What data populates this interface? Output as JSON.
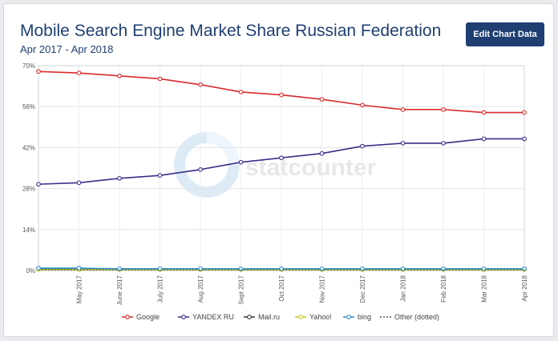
{
  "header": {
    "title": "Mobile Search Engine Market Share Russian Federation",
    "subtitle": "Apr 2017 - Apr 2018",
    "edit_button": "Edit Chart Data"
  },
  "watermark": "statcounter",
  "chart_data": {
    "type": "line",
    "categories": [
      "Apr 2017",
      "May 2017",
      "June 2017",
      "July 2017",
      "Aug 2017",
      "Sept 2017",
      "Oct 2017",
      "Nov 2017",
      "Dec 2017",
      "Jan 2018",
      "Feb 2018",
      "Mar 2018",
      "Apr 2018"
    ],
    "x_tick_labels": [
      "May 2017",
      "June 2017",
      "July 2017",
      "Aug 2017",
      "Sept 2017",
      "Oct 2017",
      "Nov 2017",
      "Dec 2017",
      "Jan 2018",
      "Feb 2018",
      "Mar 2018",
      "Apr 2018"
    ],
    "y_ticks": [
      "0%",
      "14%",
      "28%",
      "42%",
      "56%",
      "70%"
    ],
    "ylim": [
      0,
      70
    ],
    "grid": true,
    "legend_position": "bottom",
    "series": [
      {
        "name": "Google",
        "color": "#d92b2b",
        "marker": true,
        "values": [
          68.0,
          67.5,
          66.5,
          65.5,
          63.5,
          61.0,
          60.0,
          58.5,
          56.5,
          55.0,
          55.0,
          54.0,
          54.0
        ]
      },
      {
        "name": "YANDEX RU",
        "color": "#3a2f8a",
        "marker": true,
        "values": [
          29.5,
          30.0,
          31.5,
          32.5,
          34.5,
          37.0,
          38.5,
          40.0,
          42.5,
          43.5,
          43.5,
          45.0,
          45.0
        ]
      },
      {
        "name": "Mail.ru",
        "color": "#333333",
        "marker": true,
        "values": [
          0.6,
          0.6,
          0.5,
          0.5,
          0.5,
          0.5,
          0.5,
          0.5,
          0.5,
          0.5,
          0.5,
          0.5,
          0.5
        ]
      },
      {
        "name": "Yahoo!",
        "color": "#c5cc1e",
        "marker": true,
        "values": [
          0.3,
          0.3,
          0.3,
          0.3,
          0.3,
          0.3,
          0.3,
          0.3,
          0.3,
          0.3,
          0.3,
          0.3,
          0.3
        ]
      },
      {
        "name": "bing",
        "color": "#2a8ec9",
        "marker": true,
        "values": [
          0.8,
          0.8,
          0.6,
          0.6,
          0.6,
          0.6,
          0.6,
          0.6,
          0.6,
          0.6,
          0.6,
          0.6,
          0.6
        ]
      },
      {
        "name": "Other (dotted)",
        "color": "#555555",
        "marker": false,
        "values": [
          0.2,
          0.2,
          0.2,
          0.2,
          0.2,
          0.2,
          0.2,
          0.2,
          0.2,
          0.2,
          0.2,
          0.2,
          0.2
        ]
      }
    ]
  }
}
